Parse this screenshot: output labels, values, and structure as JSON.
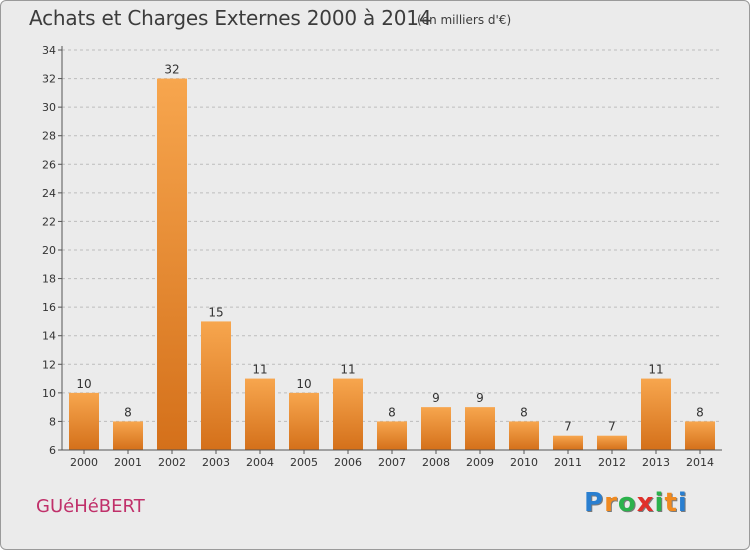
{
  "title": "Achats et Charges Externes 2000 à 2014",
  "subtitle": "(en milliers d'€)",
  "commune": "GUéHéBERT",
  "logo": {
    "text": "Proxiti",
    "letter_colors": [
      "#2a7fd0",
      "#f08a20",
      "#2bb24c",
      "#e0302a",
      "#2bb24c",
      "#f08a20",
      "#2a7fd0"
    ]
  },
  "colors": {
    "bar_top": "#f7a64e",
    "bar_bottom": "#d4701a",
    "commune": "#c0306a",
    "axis": "#555555",
    "grid": "#bdbdbd",
    "plot_bg": "#ebebeb"
  },
  "chart_data": {
    "type": "bar",
    "categories": [
      "2000",
      "2001",
      "2002",
      "2003",
      "2004",
      "2005",
      "2006",
      "2007",
      "2008",
      "2009",
      "2010",
      "2011",
      "2012",
      "2013",
      "2014"
    ],
    "values": [
      10,
      8,
      32,
      15,
      11,
      10,
      11,
      8,
      9,
      9,
      8,
      7,
      7,
      11,
      8
    ],
    "ylim": [
      6,
      34
    ],
    "yticks": [
      6,
      8,
      10,
      12,
      14,
      16,
      18,
      20,
      22,
      24,
      26,
      28,
      30,
      32,
      34
    ],
    "grid": "horizontal dashed",
    "data_labels": true
  }
}
